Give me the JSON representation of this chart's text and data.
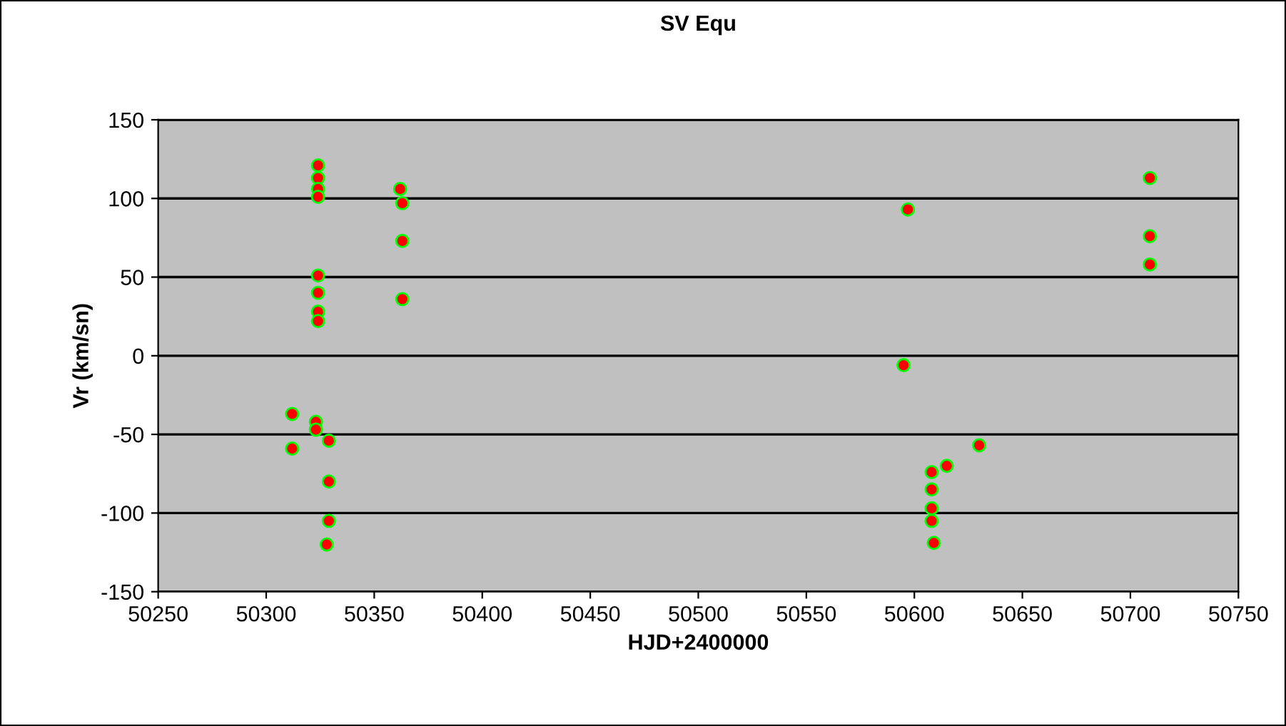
{
  "chart_data": {
    "type": "scatter",
    "title": "SV Equ",
    "xlabel": "HJD+2400000",
    "ylabel": "Vr (km/sn)",
    "series": [
      {
        "color": "#ff0000",
        "x": [
          50324,
          50324,
          50324,
          50324,
          50324,
          50324,
          50324,
          50324,
          50362,
          50363,
          50363,
          50363,
          50312,
          50312,
          50323,
          50323,
          50329,
          50329,
          50329,
          50328,
          50597,
          50595,
          50608,
          50608,
          50608,
          50608,
          50609,
          50615,
          50630,
          50709,
          50709,
          50709
        ],
        "values": [
          121,
          113,
          106,
          101,
          51,
          40,
          28,
          22,
          106,
          97,
          73,
          36,
          -37,
          -59,
          -42,
          -47,
          -54,
          -80,
          -105,
          -120,
          93,
          -6,
          -74,
          -85,
          -97,
          -105,
          -119,
          -70,
          -57,
          113,
          76,
          58
        ]
      }
    ],
    "xlim": [
      50250,
      50750
    ],
    "xticks": [
      50250,
      50300,
      50350,
      50400,
      50450,
      50500,
      50550,
      50600,
      50650,
      50700,
      50750
    ],
    "ylim": [
      -150,
      150
    ],
    "yticks": [
      -150,
      -100,
      -50,
      0,
      50,
      100,
      150
    ],
    "grid": "y",
    "marker": "circle",
    "legend": false
  }
}
